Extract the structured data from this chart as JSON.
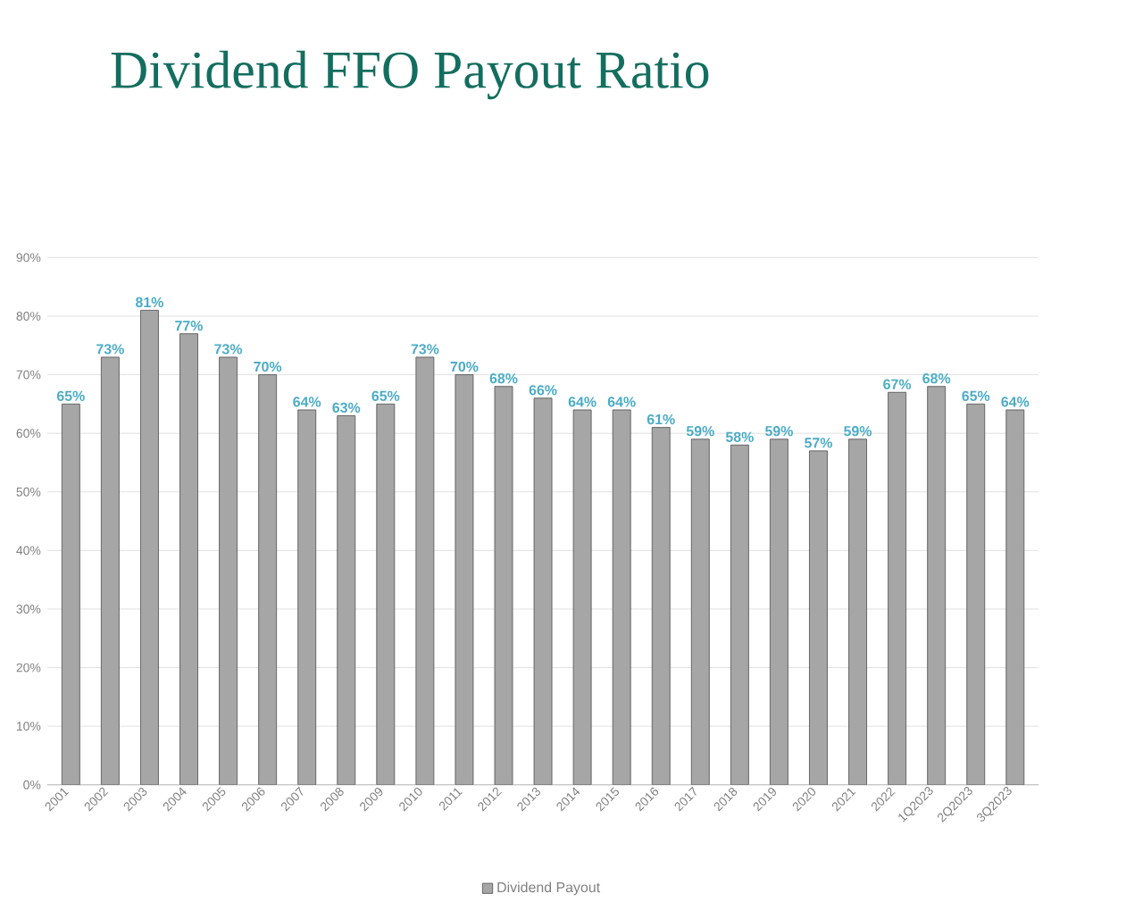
{
  "chart_data": {
    "type": "bar",
    "title": "Dividend FFO Payout Ratio",
    "categories": [
      "2001",
      "2002",
      "2003",
      "2004",
      "2005",
      "2006",
      "2007",
      "2008",
      "2009",
      "2010",
      "2011",
      "2012",
      "2013",
      "2014",
      "2015",
      "2016",
      "2017",
      "2018",
      "2019",
      "2020",
      "2021",
      "2022",
      "1Q2023",
      "2Q2023",
      "3Q2023"
    ],
    "series": [
      {
        "name": "Dividend Payout",
        "color": "#a6a6a6",
        "values": [
          65,
          73,
          81,
          77,
          73,
          70,
          64,
          63,
          65,
          73,
          70,
          68,
          66,
          64,
          64,
          61,
          59,
          58,
          59,
          57,
          59,
          67,
          68,
          65,
          64
        ],
        "value_labels": [
          "65%",
          "73%",
          "81%",
          "77%",
          "73%",
          "70%",
          "64%",
          "63%",
          "65%",
          "73%",
          "70%",
          "68%",
          "66%",
          "64%",
          "64%",
          "61%",
          "59%",
          "58%",
          "59%",
          "57%",
          "59%",
          "67%",
          "68%",
          "65%",
          "64%"
        ]
      }
    ],
    "ylim": [
      0,
      90
    ],
    "yticks": [
      {
        "value": 0,
        "label": "0%"
      },
      {
        "value": 10,
        "label": "10%"
      },
      {
        "value": 20,
        "label": "20%"
      },
      {
        "value": 30,
        "label": "30%"
      },
      {
        "value": 40,
        "label": "40%"
      },
      {
        "value": 50,
        "label": "50%"
      },
      {
        "value": 60,
        "label": "60%"
      },
      {
        "value": 70,
        "label": "70%"
      },
      {
        "value": 80,
        "label": "80%"
      },
      {
        "value": 90,
        "label": "90%"
      }
    ],
    "grid": "y",
    "legend": "bottom"
  }
}
